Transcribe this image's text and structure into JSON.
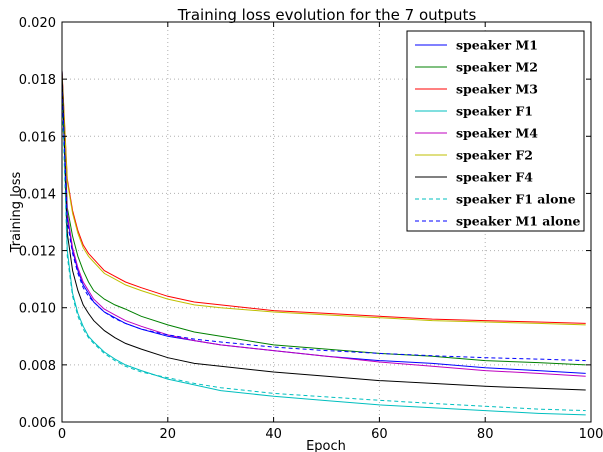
{
  "chart_data": {
    "type": "line",
    "title": "Training loss evolution for the 7 outputs",
    "xlabel": "Epoch",
    "ylabel": "Training loss",
    "xlim": [
      0,
      100
    ],
    "ylim": [
      0.006,
      0.02
    ],
    "xticks": [
      "0",
      "20",
      "40",
      "60",
      "80",
      "100"
    ],
    "yticks": [
      "0.006",
      "0.008",
      "0.010",
      "0.012",
      "0.014",
      "0.016",
      "0.018",
      "0.020"
    ],
    "grid": true,
    "legend_position": "top-right",
    "x": [
      0,
      1,
      2,
      3,
      4,
      5,
      6,
      8,
      10,
      12,
      15,
      20,
      25,
      30,
      40,
      50,
      60,
      70,
      80,
      90,
      99
    ],
    "series": [
      {
        "name": "speaker M1",
        "color": "#0000ff",
        "dash": "solid",
        "values": [
          0.0183,
          0.0132,
          0.012,
          0.0113,
          0.0108,
          0.0105,
          0.0102,
          0.00985,
          0.00965,
          0.00945,
          0.00925,
          0.009,
          0.00885,
          0.0087,
          0.0085,
          0.0083,
          0.00815,
          0.00805,
          0.0079,
          0.0078,
          0.0077
        ]
      },
      {
        "name": "speaker M2",
        "color": "#008000",
        "dash": "solid",
        "values": [
          0.0183,
          0.0135,
          0.0125,
          0.0118,
          0.0113,
          0.0109,
          0.0106,
          0.0103,
          0.0101,
          0.00995,
          0.0097,
          0.0094,
          0.00915,
          0.009,
          0.0087,
          0.00855,
          0.0084,
          0.0083,
          0.00815,
          0.00808,
          0.008
        ]
      },
      {
        "name": "speaker M3",
        "color": "#ff0000",
        "dash": "solid",
        "values": [
          0.0183,
          0.0145,
          0.0134,
          0.0127,
          0.0122,
          0.0119,
          0.0117,
          0.0113,
          0.0111,
          0.0109,
          0.0107,
          0.0104,
          0.0102,
          0.0101,
          0.0099,
          0.0098,
          0.0097,
          0.0096,
          0.00955,
          0.0095,
          0.00945
        ]
      },
      {
        "name": "speaker F1",
        "color": "#00bfbf",
        "dash": "solid",
        "values": [
          0.0183,
          0.012,
          0.0105,
          0.0098,
          0.00935,
          0.009,
          0.0088,
          0.00845,
          0.0082,
          0.008,
          0.0078,
          0.0075,
          0.0073,
          0.0071,
          0.0069,
          0.00675,
          0.0066,
          0.0065,
          0.0064,
          0.0063,
          0.00625
        ]
      },
      {
        "name": "speaker M4",
        "color": "#bf00bf",
        "dash": "solid",
        "values": [
          0.0183,
          0.0133,
          0.0121,
          0.0114,
          0.0109,
          0.0106,
          0.0103,
          0.00995,
          0.00975,
          0.00955,
          0.00935,
          0.00905,
          0.00885,
          0.0087,
          0.0085,
          0.0083,
          0.0081,
          0.00795,
          0.0078,
          0.0077,
          0.0076
        ]
      },
      {
        "name": "speaker F2",
        "color": "#bfbf00",
        "dash": "solid",
        "values": [
          0.0182,
          0.0144,
          0.0133,
          0.0126,
          0.0121,
          0.0118,
          0.0116,
          0.0112,
          0.011,
          0.0108,
          0.0106,
          0.0103,
          0.0101,
          0.01,
          0.00985,
          0.00975,
          0.00965,
          0.00955,
          0.0095,
          0.00945,
          0.0094
        ]
      },
      {
        "name": "speaker F4",
        "color": "#000000",
        "dash": "solid",
        "values": [
          0.0183,
          0.0126,
          0.0113,
          0.0106,
          0.0101,
          0.0098,
          0.00955,
          0.0092,
          0.00895,
          0.00875,
          0.00855,
          0.00825,
          0.00805,
          0.00795,
          0.00775,
          0.0076,
          0.00745,
          0.00735,
          0.00725,
          0.00718,
          0.00712
        ]
      },
      {
        "name": "speaker F1 alone",
        "color": "#00bfbf",
        "dash": "dashed",
        "values": [
          0.0175,
          0.0118,
          0.0104,
          0.0097,
          0.00925,
          0.00895,
          0.00875,
          0.0084,
          0.00815,
          0.00795,
          0.00775,
          0.00755,
          0.00735,
          0.0072,
          0.007,
          0.00688,
          0.00676,
          0.00665,
          0.00655,
          0.00645,
          0.0064
        ]
      },
      {
        "name": "speaker M1 alone",
        "color": "#0000ff",
        "dash": "dashed",
        "values": [
          0.0178,
          0.013,
          0.0119,
          0.0112,
          0.0107,
          0.0104,
          0.0102,
          0.00985,
          0.00962,
          0.00945,
          0.00925,
          0.00905,
          0.0089,
          0.0088,
          0.00862,
          0.0085,
          0.0084,
          0.00832,
          0.00825,
          0.0082,
          0.00815
        ]
      }
    ]
  }
}
